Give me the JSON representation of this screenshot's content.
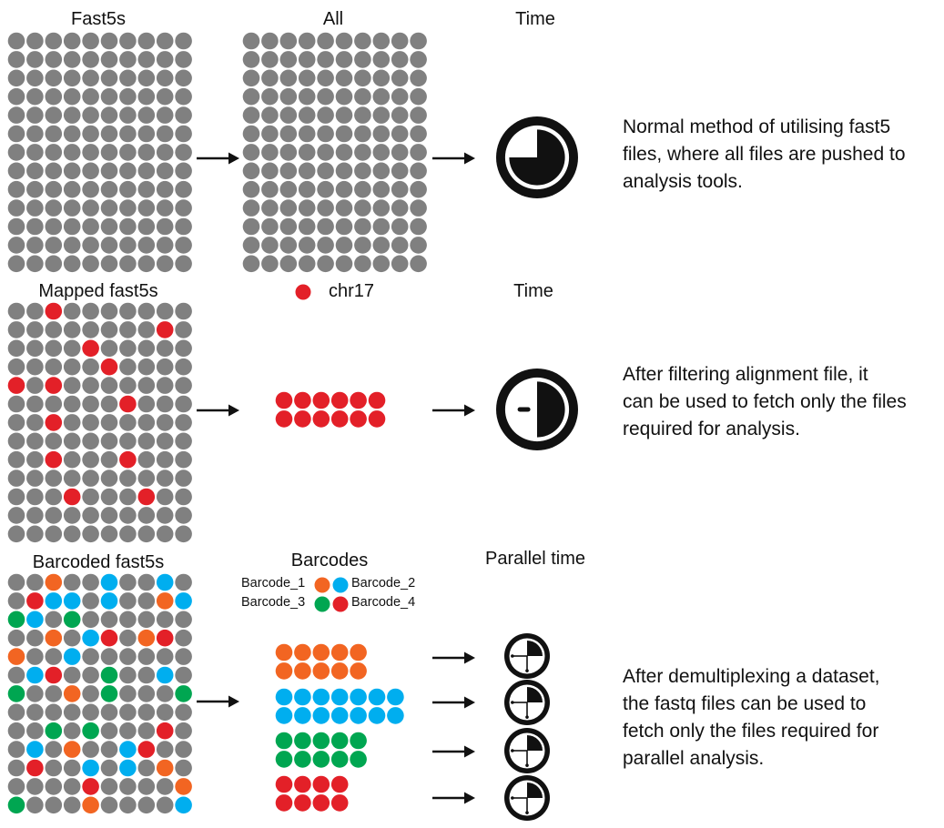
{
  "colors": {
    "grey": "#808080",
    "red": "#e32028",
    "orange": "#f26522",
    "blue": "#00aeef",
    "green": "#00a651",
    "black": "#111111"
  },
  "rows": [
    {
      "source_label": "Fast5s",
      "middle_label": "All",
      "time_label": "Time",
      "description": [
        "Normal method of utilising fast5",
        "files, where all files are pushed to",
        "analysis tools."
      ]
    },
    {
      "source_label": "Mapped fast5s",
      "middle_label": "chr17",
      "time_label": "Time",
      "description": [
        "After filtering alignment file, it",
        "can be used to fetch only the files",
        "required for analysis."
      ]
    },
    {
      "source_label": "Barcoded fast5s",
      "middle_label": "Barcodes",
      "time_label": "Parallel time",
      "description": [
        "After demultiplexing a dataset,",
        "the fastq files can be used to",
        "fetch only the files required for",
        "parallel analysis."
      ]
    }
  ],
  "barcode_legend": [
    {
      "label": "Barcode_1",
      "color_key": "orange"
    },
    {
      "label": "Barcode_2",
      "color_key": "blue"
    },
    {
      "label": "Barcode_3",
      "color_key": "green"
    },
    {
      "label": "Barcode_4",
      "color_key": "red"
    }
  ],
  "icons": {
    "arrow": "right-arrow-icon",
    "clock": "clock-icon",
    "file": "file-dot-icon"
  }
}
